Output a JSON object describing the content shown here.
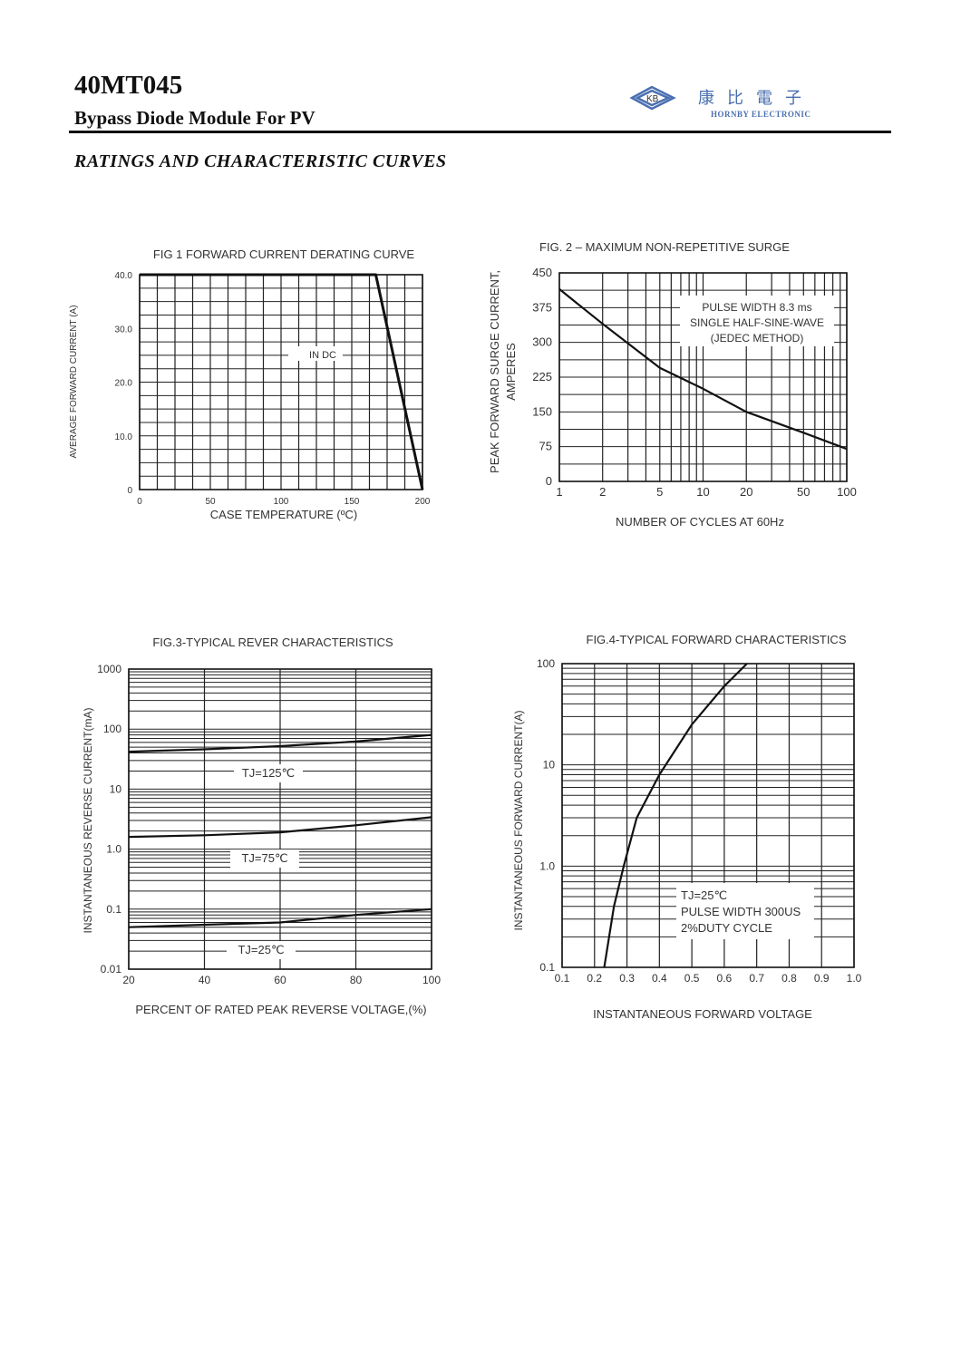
{
  "header": {
    "title": "40MT045",
    "subtitle": "Bypass Diode Module For PV",
    "section": "RATINGS AND CHARACTERISTIC CURVES",
    "logo": {
      "cn": "康比電子",
      "en": "HORNBY ELECTRONIC",
      "mark": "KB",
      "color": "#4a6fb0"
    }
  },
  "chart_data": [
    {
      "type": "line",
      "title": "FIG 1 FORWARD CURRENT DERATING CURVE",
      "xlabel": "CASE TEMPERATURE (ºC)",
      "ylabel": "AVERAGE FORWARD CURRENT (A)",
      "xlim": [
        0,
        200
      ],
      "ylim": [
        0,
        40
      ],
      "xticks": [
        "0",
        "50",
        "100",
        "150",
        "200"
      ],
      "yticks": [
        "0",
        "10.0",
        "20.0",
        "30.0",
        "40.0"
      ],
      "grid": true,
      "annotations": [
        "IN DC"
      ],
      "series": [
        {
          "x": [
            0,
            167,
            200
          ],
          "y": [
            40,
            40,
            0
          ]
        }
      ]
    },
    {
      "type": "line",
      "title": "FIG. 2 – MAXIMUM NON-REPETITIVE SURGE",
      "xlabel": "NUMBER OF CYCLES AT 60Hz",
      "ylabel": [
        "PEAK FORWARD SURGE CURRENT,",
        "AMPERES"
      ],
      "xscale": "log",
      "xlim": [
        1,
        100
      ],
      "ylim": [
        0,
        450
      ],
      "xticks": [
        "1",
        "2",
        "5",
        "10",
        "20",
        "50",
        "100"
      ],
      "yticks": [
        "0",
        "75",
        "150",
        "225",
        "300",
        "375",
        "450"
      ],
      "grid": true,
      "annotations": [
        "PULSE WIDTH 8.3 ms",
        "SINGLE HALF-SINE-WAVE",
        "(JEDEC METHOD)"
      ],
      "series": [
        {
          "x": [
            1,
            2,
            5,
            10,
            20,
            50,
            100
          ],
          "y": [
            415,
            340,
            245,
            200,
            150,
            105,
            70
          ]
        }
      ]
    },
    {
      "type": "line",
      "title": "FIG.3-TYPICAL REVER CHARACTERISTICS",
      "xlabel": "PERCENT OF RATED PEAK REVERSE VOLTAGE,(%)",
      "ylabel": "INSTANTANEOUS REVERSE CURRENT(mA)",
      "yscale": "log",
      "xlim": [
        20,
        100
      ],
      "ylim": [
        0.01,
        1000
      ],
      "xticks": [
        "20",
        "40",
        "60",
        "80",
        "100"
      ],
      "yticks": [
        "0.01",
        "0.1",
        "1.0",
        "10",
        "100",
        "1000"
      ],
      "grid": true,
      "series": [
        {
          "name": "TJ=125℃",
          "x": [
            20,
            40,
            60,
            80,
            100
          ],
          "y": [
            42,
            46,
            52,
            62,
            80
          ]
        },
        {
          "name": "TJ=75℃",
          "x": [
            20,
            40,
            60,
            80,
            100
          ],
          "y": [
            1.6,
            1.7,
            1.9,
            2.5,
            3.4
          ]
        },
        {
          "name": "TJ=25℃",
          "x": [
            20,
            40,
            60,
            80,
            100
          ],
          "y": [
            0.05,
            0.055,
            0.06,
            0.08,
            0.1
          ]
        }
      ]
    },
    {
      "type": "line",
      "title": "FIG.4-TYPICAL FORWARD CHARACTERISTICS",
      "xlabel": "INSTANTANEOUS FORWARD VOLTAGE",
      "ylabel": "INSTANTANEOUS FORWARD CURRENT(A)",
      "yscale": "log",
      "xlim": [
        0.1,
        1.0
      ],
      "ylim": [
        0.1,
        100
      ],
      "xticks": [
        "0.1",
        "0.2",
        "0.3",
        "0.4",
        "0.5",
        "0.6",
        "0.7",
        "0.8",
        "0.9",
        "1.0"
      ],
      "yticks": [
        "0.1",
        "1.0",
        "10",
        "100"
      ],
      "grid": true,
      "annotations": [
        "TJ=25℃",
        "PULSE WIDTH 300US",
        "2%DUTY CYCLE"
      ],
      "series": [
        {
          "x": [
            0.23,
            0.26,
            0.29,
            0.33,
            0.4,
            0.5,
            0.6,
            0.67
          ],
          "y": [
            0.1,
            0.4,
            1.0,
            3.0,
            8.0,
            25,
            60,
            100
          ]
        }
      ]
    }
  ]
}
